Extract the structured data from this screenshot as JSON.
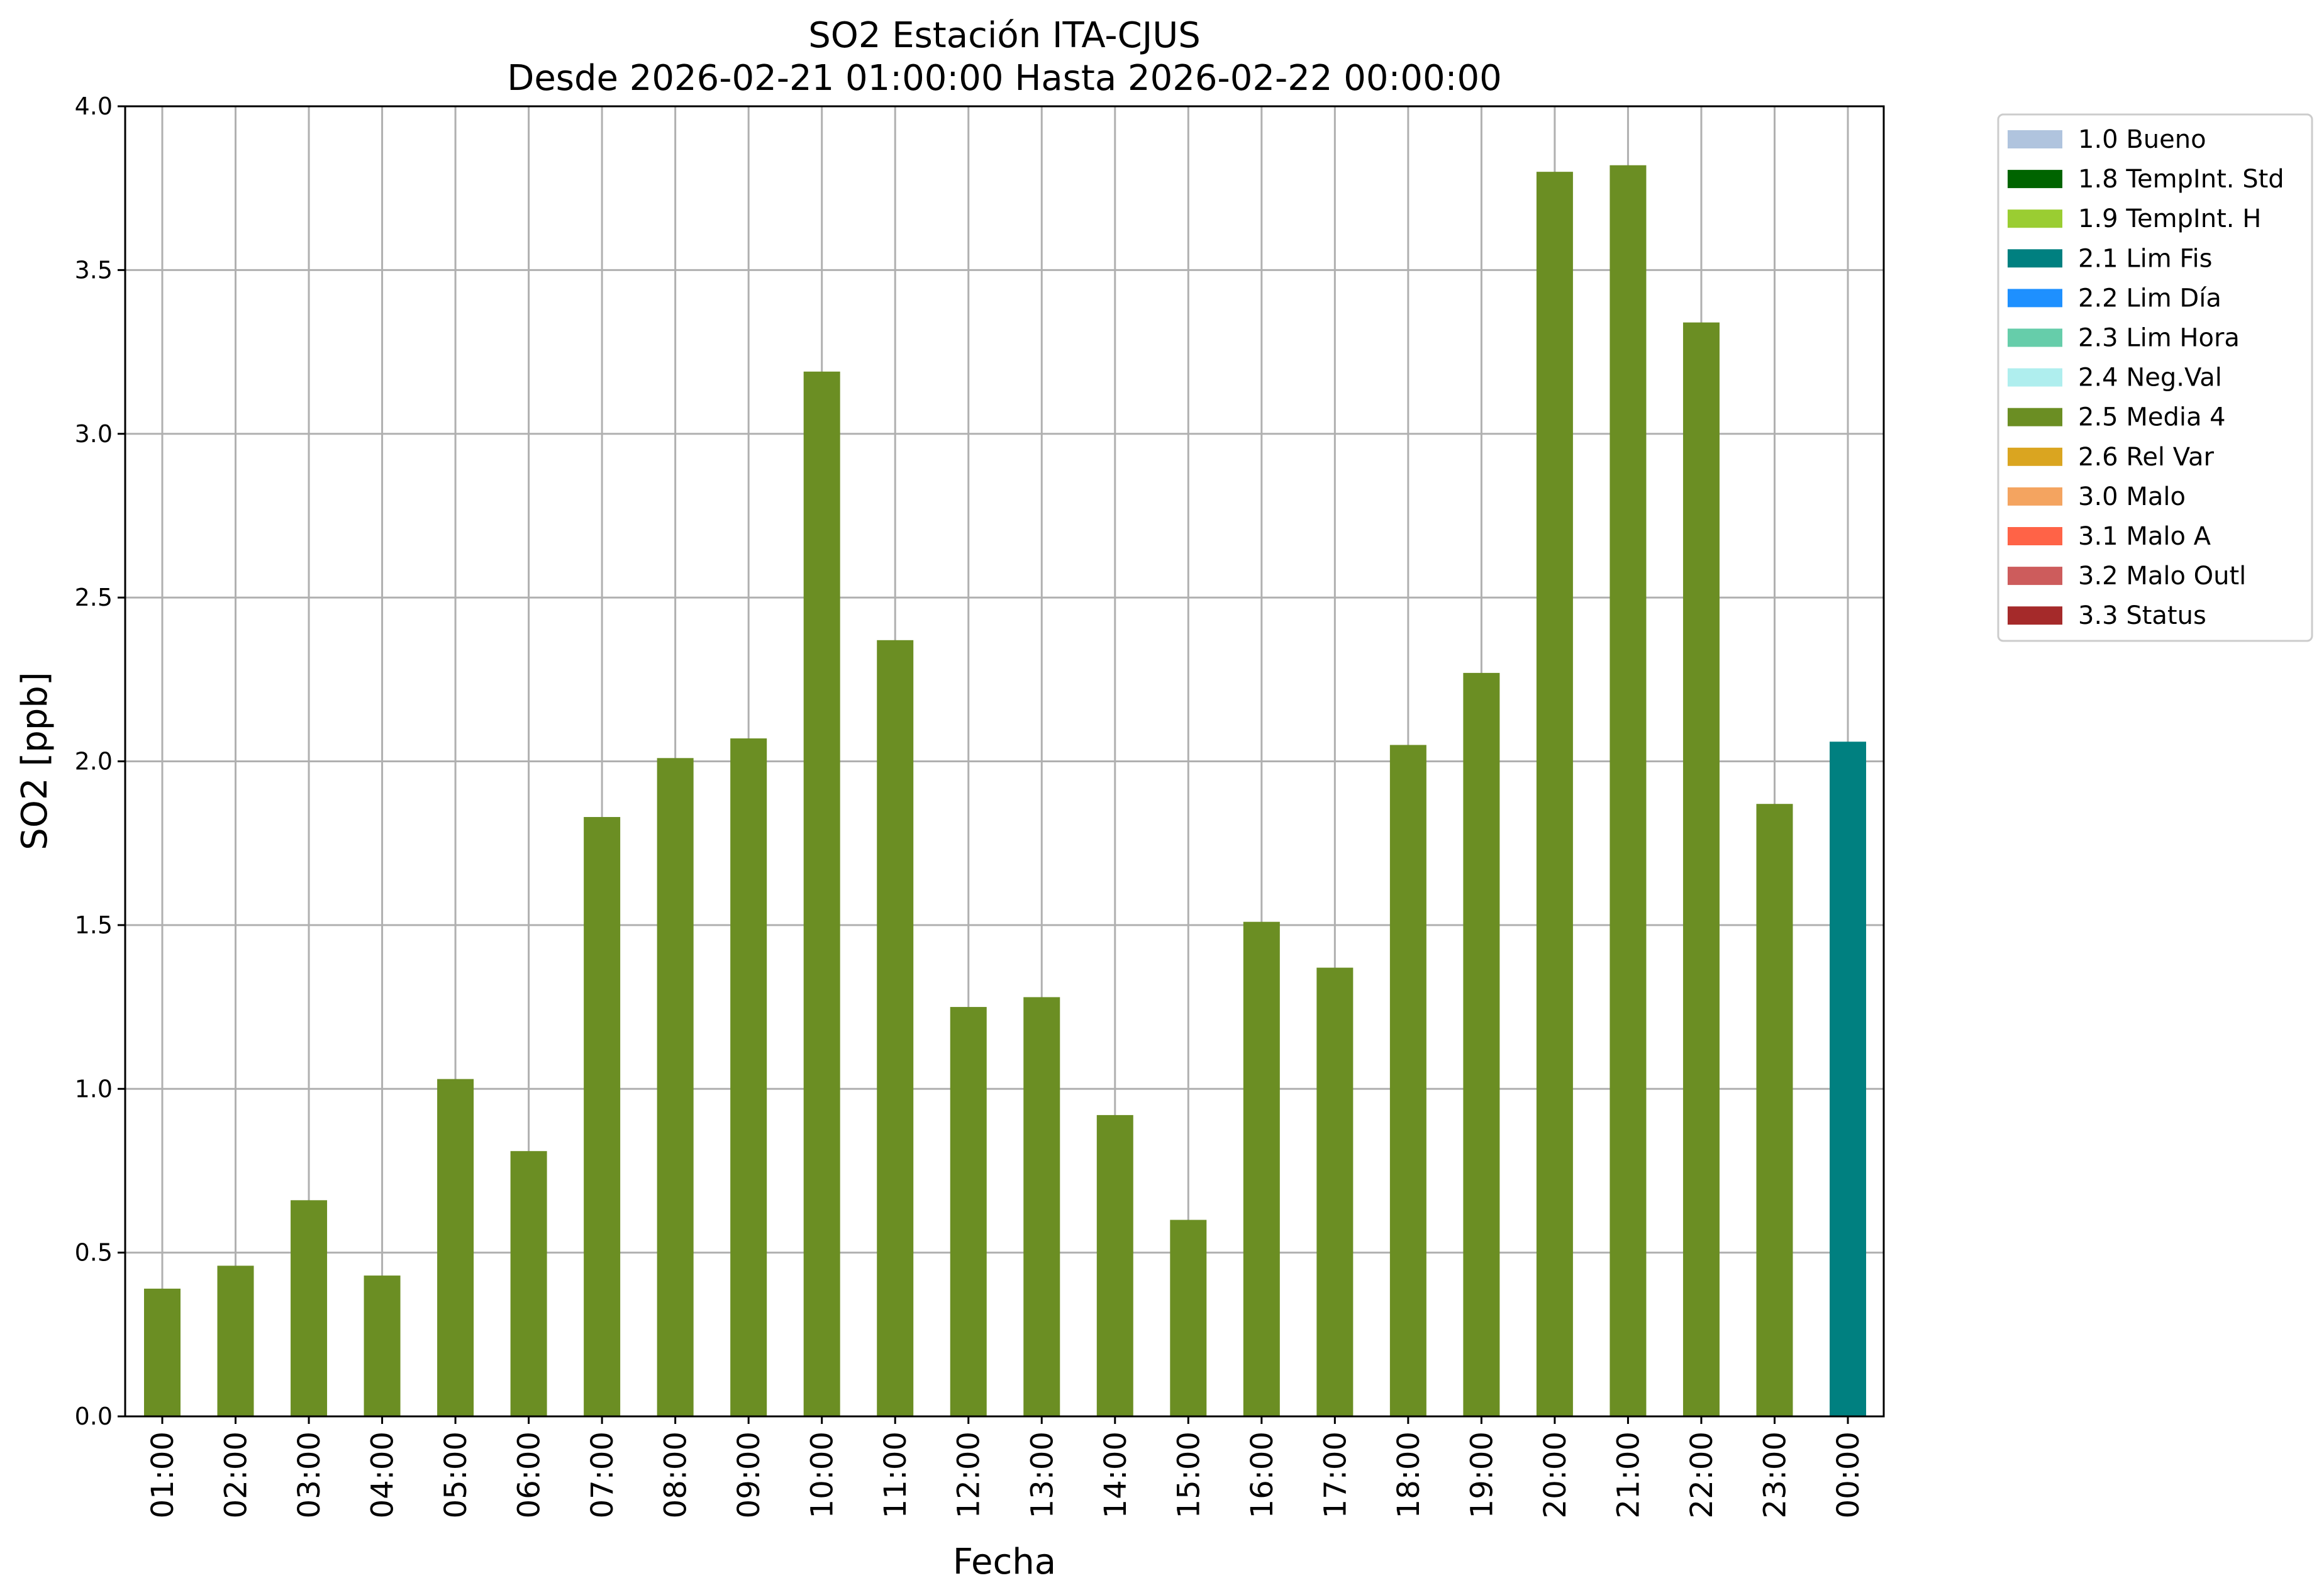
{
  "chart_data": {
    "type": "bar",
    "title": [
      "SO2 Estación ITA-CJUS",
      "Desde 2026-02-21 01:00:00 Hasta 2026-02-22 00:00:00"
    ],
    "xlabel": "Fecha",
    "ylabel": "SO2 [ppb]",
    "ylim": [
      0,
      4.0
    ],
    "yticks": [
      "0.0",
      "0.5",
      "1.0",
      "1.5",
      "2.0",
      "2.5",
      "3.0",
      "3.5",
      "4.0"
    ],
    "grid": true,
    "legend_position": "outside-top-right",
    "categories": [
      "01:00",
      "02:00",
      "03:00",
      "04:00",
      "05:00",
      "06:00",
      "07:00",
      "08:00",
      "09:00",
      "10:00",
      "11:00",
      "12:00",
      "13:00",
      "14:00",
      "15:00",
      "16:00",
      "17:00",
      "18:00",
      "19:00",
      "20:00",
      "21:00",
      "22:00",
      "23:00",
      "00:00"
    ],
    "values": [
      0.39,
      0.46,
      0.66,
      0.43,
      1.03,
      0.81,
      1.83,
      2.01,
      2.07,
      3.19,
      2.37,
      1.25,
      1.28,
      0.92,
      0.6,
      1.51,
      1.37,
      2.05,
      2.27,
      3.8,
      3.82,
      3.34,
      1.87,
      2.06
    ],
    "bar_flags": [
      "2.5 Media 4",
      "2.5 Media 4",
      "2.5 Media 4",
      "2.5 Media 4",
      "2.5 Media 4",
      "2.5 Media 4",
      "2.5 Media 4",
      "2.5 Media 4",
      "2.5 Media 4",
      "2.5 Media 4",
      "2.5 Media 4",
      "2.5 Media 4",
      "2.5 Media 4",
      "2.5 Media 4",
      "2.5 Media 4",
      "2.5 Media 4",
      "2.5 Media 4",
      "2.5 Media 4",
      "2.5 Media 4",
      "2.5 Media 4",
      "2.5 Media 4",
      "2.5 Media 4",
      "2.5 Media 4",
      "2.1 Lim Fis"
    ],
    "legend": [
      {
        "label": "1.0 Bueno",
        "color": "#b0c4de"
      },
      {
        "label": "1.8 TempInt. Std",
        "color": "#006400"
      },
      {
        "label": "1.9 TempInt. H",
        "color": "#9acd32"
      },
      {
        "label": "2.1 Lim Fis",
        "color": "#008080"
      },
      {
        "label": "2.2 Lim Día",
        "color": "#1e90ff"
      },
      {
        "label": "2.3 Lim Hora",
        "color": "#66cdaa"
      },
      {
        "label": "2.4 Neg.Val",
        "color": "#afeeee"
      },
      {
        "label": "2.5 Media 4",
        "color": "#6b8e23"
      },
      {
        "label": "2.6 Rel Var",
        "color": "#daa520"
      },
      {
        "label": "3.0 Malo",
        "color": "#f4a460"
      },
      {
        "label": "3.1 Malo A",
        "color": "#ff6347"
      },
      {
        "label": "3.2 Malo Outl",
        "color": "#cd5c5c"
      },
      {
        "label": "3.3 Status",
        "color": "#a52a2a"
      }
    ]
  }
}
